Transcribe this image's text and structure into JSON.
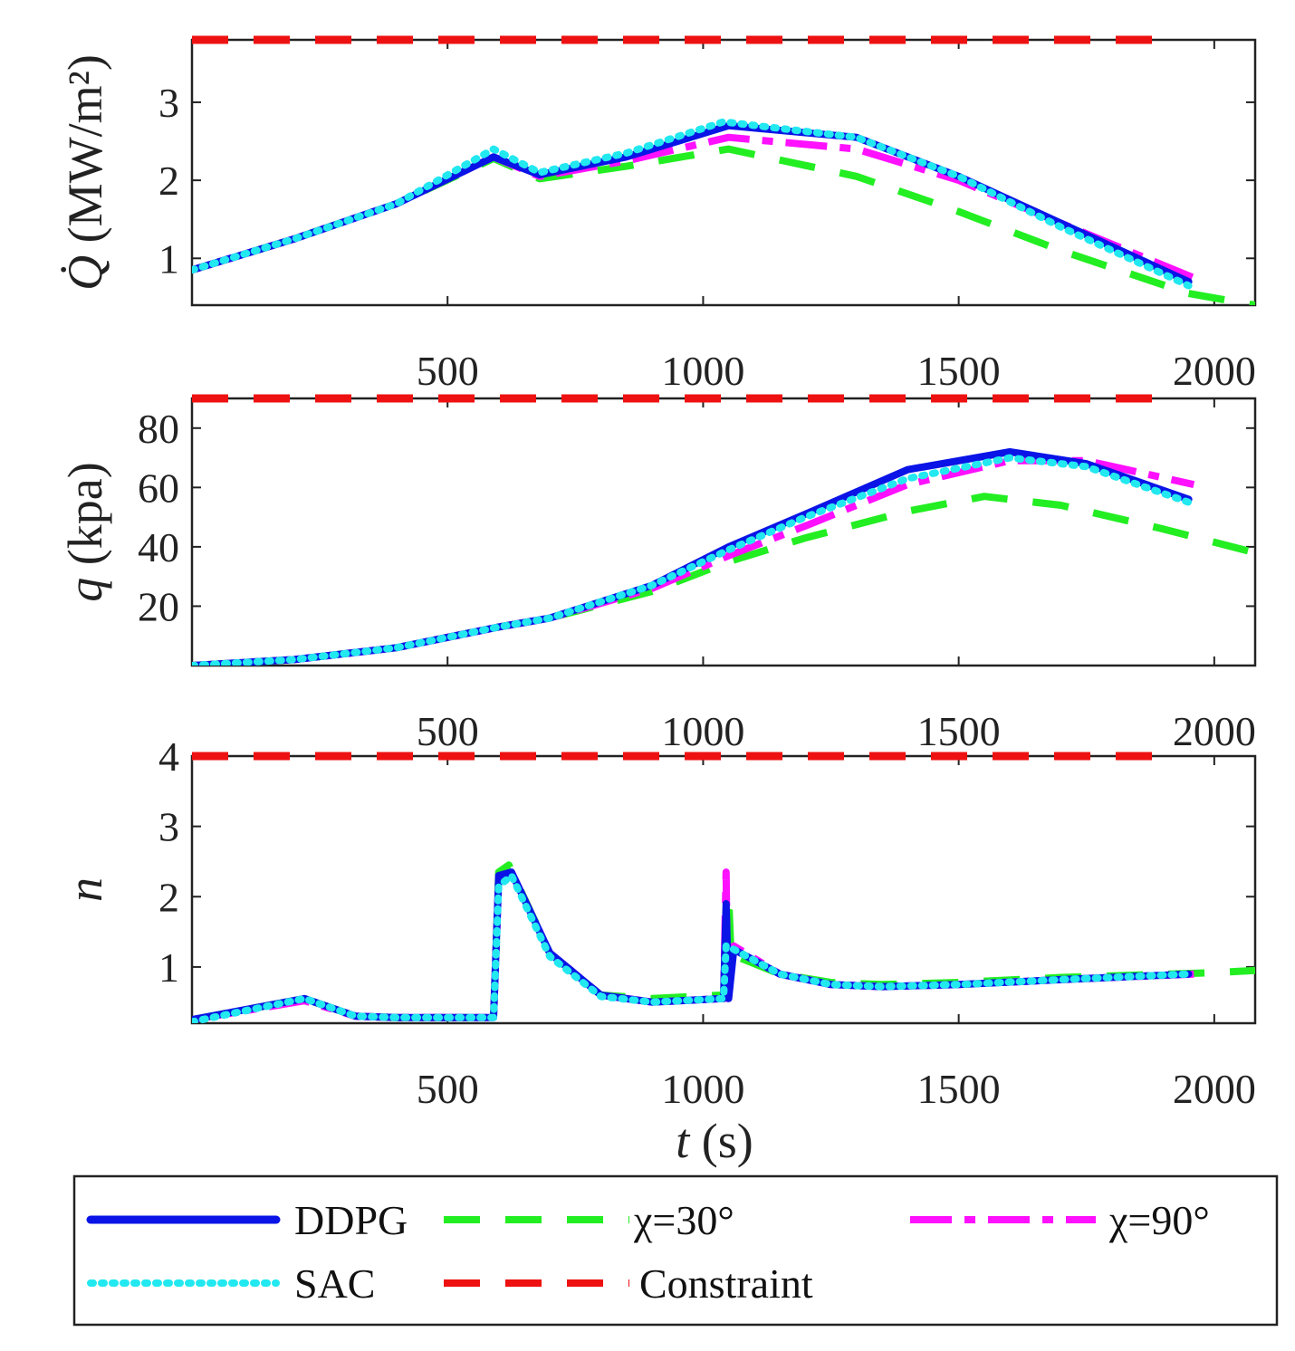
{
  "chart_data": [
    {
      "type": "line",
      "panel": "heat-flux",
      "ylabel_symbol": "Q̇",
      "ylabel_unit": "(MW/m²)",
      "xlim": [
        0,
        2080
      ],
      "ylim": [
        0.4,
        3.8
      ],
      "xticks": [
        500,
        1000,
        1500,
        2000
      ],
      "yticks": [
        1,
        2,
        3
      ],
      "series": [
        {
          "key": "ddpg",
          "x": [
            0,
            200,
            400,
            590,
            680,
            850,
            1050,
            1300,
            1500,
            1700,
            1950
          ],
          "y": [
            0.85,
            1.25,
            1.7,
            2.3,
            2.07,
            2.3,
            2.7,
            2.55,
            2.05,
            1.45,
            0.7
          ]
        },
        {
          "key": "chi30",
          "x": [
            0,
            200,
            400,
            590,
            680,
            850,
            1050,
            1300,
            1500,
            1700,
            1950,
            2080
          ],
          "y": [
            0.85,
            1.25,
            1.7,
            2.28,
            2.02,
            2.18,
            2.4,
            2.05,
            1.6,
            1.1,
            0.55,
            0.4
          ]
        },
        {
          "key": "chi90",
          "x": [
            0,
            200,
            400,
            590,
            680,
            850,
            1050,
            1300,
            1500,
            1700,
            1960
          ],
          "y": [
            0.85,
            1.25,
            1.7,
            2.3,
            2.05,
            2.25,
            2.55,
            2.4,
            2.0,
            1.45,
            0.75
          ]
        },
        {
          "key": "sac",
          "x": [
            0,
            200,
            400,
            590,
            680,
            850,
            1040,
            1300,
            1500,
            1700,
            1950
          ],
          "y": [
            0.85,
            1.25,
            1.7,
            2.4,
            2.1,
            2.35,
            2.75,
            2.55,
            2.05,
            1.4,
            0.65
          ]
        },
        {
          "key": "constraint",
          "x": [
            0,
            1900
          ],
          "y": [
            3.8,
            3.8
          ]
        }
      ]
    },
    {
      "type": "line",
      "panel": "dynamic-pressure",
      "ylabel_symbol": "q",
      "ylabel_unit": "(kpa)",
      "xlim": [
        0,
        2080
      ],
      "ylim": [
        0,
        90
      ],
      "xticks": [
        500,
        1000,
        1500,
        2000
      ],
      "yticks": [
        20,
        40,
        60,
        80
      ],
      "series": [
        {
          "key": "ddpg",
          "x": [
            0,
            200,
            400,
            600,
            700,
            900,
            1050,
            1200,
            1400,
            1600,
            1750,
            1950
          ],
          "y": [
            0,
            2,
            6,
            13,
            16,
            27,
            40,
            51,
            66,
            72,
            68,
            56
          ]
        },
        {
          "key": "chi30",
          "x": [
            0,
            200,
            400,
            600,
            700,
            900,
            1050,
            1200,
            1400,
            1550,
            1700,
            1900,
            2080
          ],
          "y": [
            0,
            2,
            6,
            13,
            16,
            25,
            35,
            43,
            52,
            57,
            54,
            46,
            38
          ]
        },
        {
          "key": "chi90",
          "x": [
            0,
            200,
            400,
            600,
            700,
            900,
            1050,
            1200,
            1400,
            1600,
            1750,
            1960
          ],
          "y": [
            0,
            2,
            6,
            13,
            16,
            26,
            37,
            47,
            61,
            69,
            69,
            61
          ]
        },
        {
          "key": "sac",
          "x": [
            0,
            200,
            400,
            600,
            700,
            900,
            1050,
            1200,
            1400,
            1600,
            1750,
            1950
          ],
          "y": [
            0,
            2,
            6,
            13,
            16,
            27,
            39,
            50,
            63,
            70,
            67,
            55
          ]
        },
        {
          "key": "constraint",
          "x": [
            0,
            1900
          ],
          "y": [
            90,
            90
          ]
        }
      ]
    },
    {
      "type": "line",
      "panel": "load-factor",
      "ylabel_symbol": "n",
      "ylabel_unit": "",
      "xlabel_symbol": "t",
      "xlabel_unit": "(s)",
      "xlim": [
        0,
        2080
      ],
      "ylim": [
        0.2,
        4.0
      ],
      "xticks": [
        500,
        1000,
        1500,
        2000
      ],
      "yticks": [
        1,
        2,
        3,
        4
      ],
      "series": [
        {
          "key": "ddpg",
          "x": [
            0,
            220,
            320,
            400,
            590,
            600,
            625,
            700,
            800,
            900,
            1040,
            1045,
            1050,
            1060,
            1150,
            1250,
            1350,
            1500,
            1700,
            1950
          ],
          "y": [
            0.25,
            0.55,
            0.3,
            0.28,
            0.28,
            2.3,
            2.35,
            1.2,
            0.6,
            0.5,
            0.55,
            1.9,
            0.55,
            1.25,
            0.9,
            0.75,
            0.72,
            0.75,
            0.82,
            0.9
          ]
        },
        {
          "key": "chi30",
          "x": [
            0,
            220,
            320,
            400,
            590,
            600,
            620,
            700,
            800,
            900,
            1040,
            1050,
            1055,
            1065,
            1150,
            1250,
            1350,
            1500,
            1700,
            2000,
            2080
          ],
          "y": [
            0.25,
            0.55,
            0.3,
            0.28,
            0.28,
            2.35,
            2.45,
            1.2,
            0.6,
            0.55,
            0.6,
            2.0,
            1.1,
            1.15,
            0.9,
            0.78,
            0.75,
            0.78,
            0.85,
            0.92,
            0.95
          ]
        },
        {
          "key": "chi90",
          "x": [
            0,
            220,
            320,
            400,
            590,
            600,
            625,
            700,
            800,
            900,
            1040,
            1045,
            1048,
            1060,
            1150,
            1250,
            1350,
            1500,
            1700,
            1960
          ],
          "y": [
            0.25,
            0.52,
            0.3,
            0.28,
            0.28,
            2.25,
            2.35,
            1.2,
            0.6,
            0.5,
            0.55,
            2.35,
            0.55,
            1.3,
            0.9,
            0.75,
            0.72,
            0.75,
            0.82,
            0.9
          ]
        },
        {
          "key": "sac",
          "x": [
            0,
            220,
            320,
            400,
            590,
            600,
            625,
            700,
            800,
            900,
            1040,
            1045,
            1060,
            1150,
            1250,
            1350,
            1500,
            1700,
            1950
          ],
          "y": [
            0.22,
            0.55,
            0.3,
            0.28,
            0.28,
            2.15,
            2.3,
            1.15,
            0.58,
            0.5,
            0.55,
            1.3,
            1.25,
            0.9,
            0.75,
            0.72,
            0.75,
            0.82,
            0.9
          ]
        },
        {
          "key": "constraint",
          "x": [
            0,
            1900
          ],
          "y": [
            4.0,
            4.0
          ]
        }
      ]
    }
  ],
  "legend": {
    "position": "bottom",
    "entries": [
      {
        "key": "ddpg",
        "label": "DDPG"
      },
      {
        "key": "chi30",
        "label": "χ=30°"
      },
      {
        "key": "chi90",
        "label": "χ=90°"
      },
      {
        "key": "sac",
        "label": "SAC"
      },
      {
        "key": "constraint",
        "label": "Constraint"
      }
    ]
  },
  "styles": {
    "ddpg": {
      "color": "#0a14e6",
      "dash": "solid"
    },
    "chi30": {
      "color": "#22ee22",
      "dash": "dashed"
    },
    "chi90": {
      "color": "#ff10ff",
      "dash": "dashdot"
    },
    "sac": {
      "color": "#22e8f0",
      "dash": "dotted"
    },
    "constraint": {
      "color": "#ee1111",
      "dash": "dashed"
    }
  }
}
